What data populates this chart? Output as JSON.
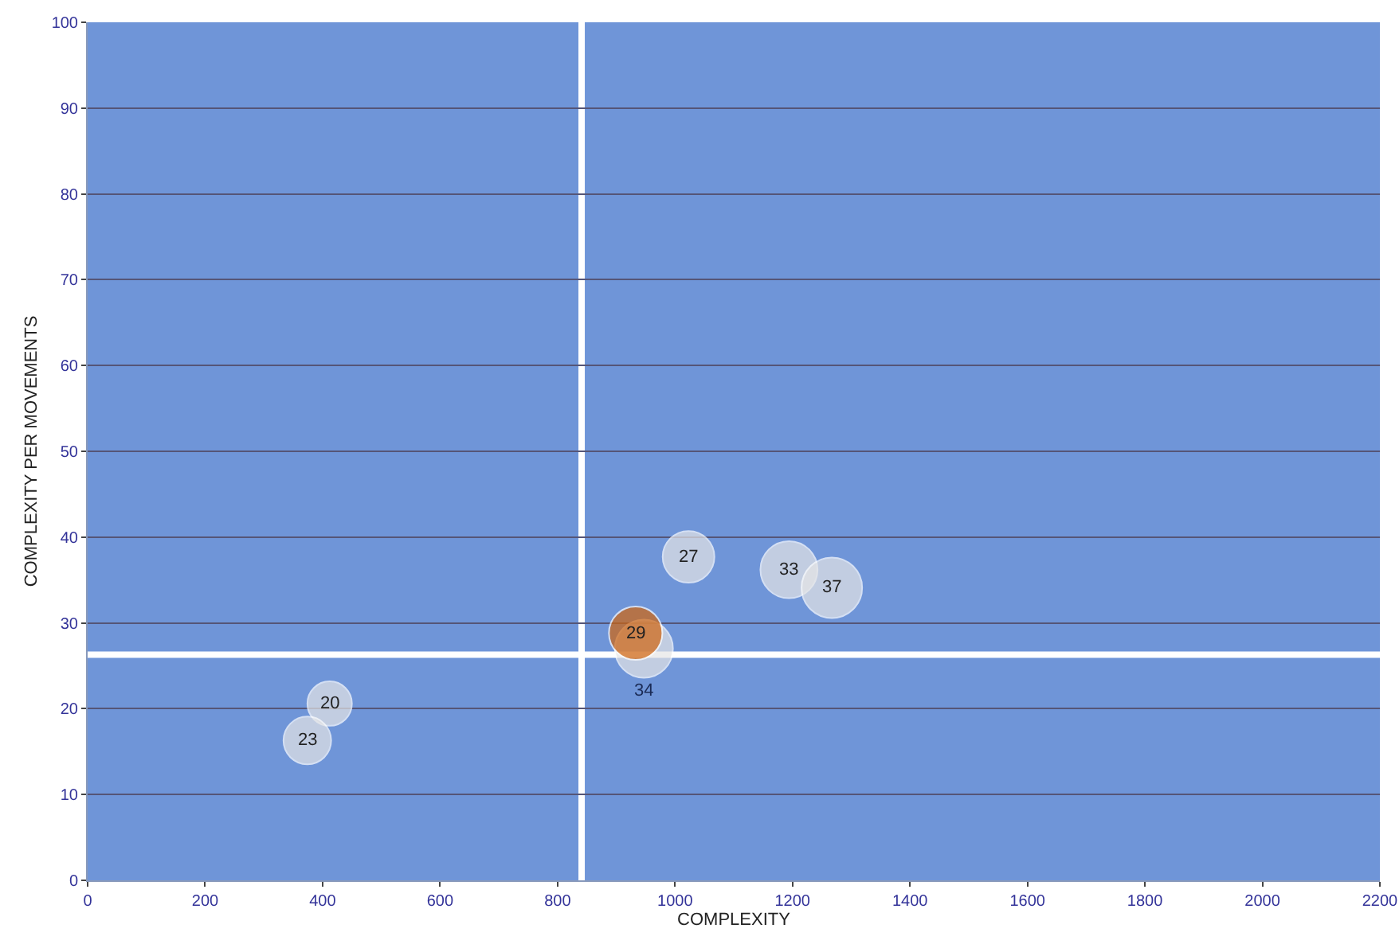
{
  "chart_data": {
    "type": "bubble",
    "xlabel": "COMPLEXITY",
    "ylabel": "COMPLEXITY PER MOVEMENTS",
    "x": [
      412,
      374,
      947,
      933,
      1023,
      1194,
      1267
    ],
    "values": [
      20.6,
      16.3,
      27,
      28.8,
      37.7,
      36.2,
      34.1
    ],
    "sizes": [
      0.54,
      0.62,
      0.92,
      0.78,
      0.73,
      0.89,
      1
    ],
    "annotations": [
      {
        "text": "20",
        "x": 412,
        "y": 20.6
      },
      {
        "text": "23",
        "x": 374,
        "y": 16.3
      },
      {
        "text": "34",
        "x": 947,
        "y": 27
      },
      {
        "text": "29",
        "x": 933,
        "y": 28.8
      },
      {
        "text": "27",
        "x": 1023,
        "y": 37.7
      },
      {
        "text": "33",
        "x": 1194,
        "y": 36.2
      },
      {
        "text": "37",
        "x": 1267,
        "y": 34.1
      }
    ],
    "colors": [
      "#e6e6e6",
      "#e6e6e6",
      "#e6e6e6",
      "#d2650e",
      "#e6e6e6",
      "#e6e6e6",
      "#e6e6e6"
    ],
    "xlim": [
      0,
      2200
    ],
    "xticks": [
      0,
      200,
      400,
      600,
      800,
      1000,
      1200,
      1400,
      1600,
      1800,
      2000,
      2200
    ],
    "ylim": [
      0,
      100
    ],
    "yticks": [
      0,
      10,
      20,
      30,
      40,
      50,
      60,
      70,
      80,
      90,
      100
    ],
    "grid": "y",
    "ref_lines": [
      {
        "axis": "x",
        "value": 841,
        "label": null,
        "color": "#ffffff"
      },
      {
        "axis": "y",
        "value": 26.3,
        "label": null,
        "color": "#ffffff"
      }
    ]
  }
}
